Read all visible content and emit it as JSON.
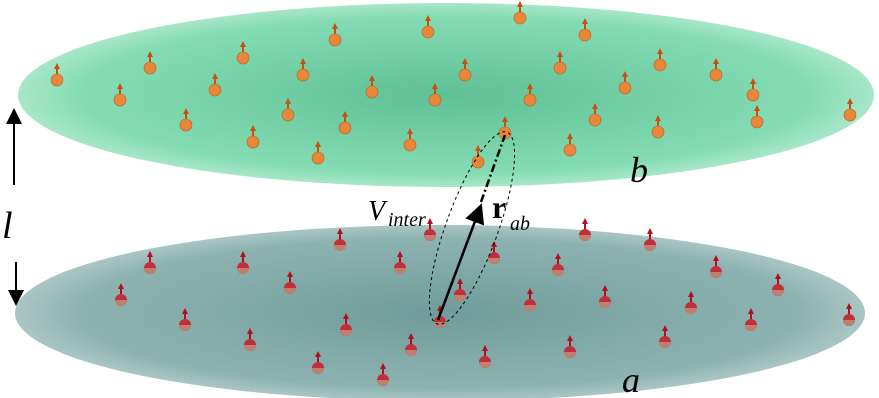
{
  "labels": {
    "top_layer": "b",
    "bottom_layer": "a",
    "separation": "l",
    "interaction": {
      "symbol": "V",
      "subscript": "inter"
    },
    "vector": {
      "symbol": "r",
      "subscript": "ab"
    }
  }
}
